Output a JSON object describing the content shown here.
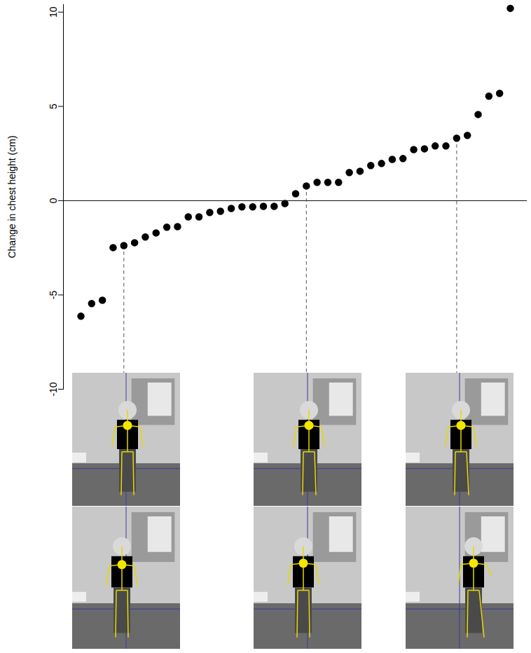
{
  "chart_data": {
    "type": "scatter",
    "y_label": "Change in chest height (cm)",
    "values": [
      -6.13,
      -5.46,
      -5.28,
      -2.49,
      -2.38,
      -2.23,
      -1.93,
      -1.71,
      -1.41,
      -1.38,
      -0.86,
      -0.86,
      -0.63,
      -0.56,
      -0.41,
      -0.33,
      -0.33,
      -0.3,
      -0.3,
      -0.15,
      0.37,
      0.78,
      0.97,
      0.97,
      0.97,
      1.49,
      1.56,
      1.86,
      1.97,
      2.19,
      2.23,
      2.71,
      2.75,
      2.9,
      2.9,
      3.31,
      3.46,
      4.57,
      5.54,
      5.69,
      10.2
    ],
    "highlighted_points": [
      5,
      22,
      36
    ],
    "color": "#000000",
    "marker": "circle",
    "ylim": [
      -10,
      10.4
    ],
    "yticks": [
      -10,
      -5,
      0,
      5,
      10
    ],
    "grid": false,
    "tick_labels": "y"
  }
}
